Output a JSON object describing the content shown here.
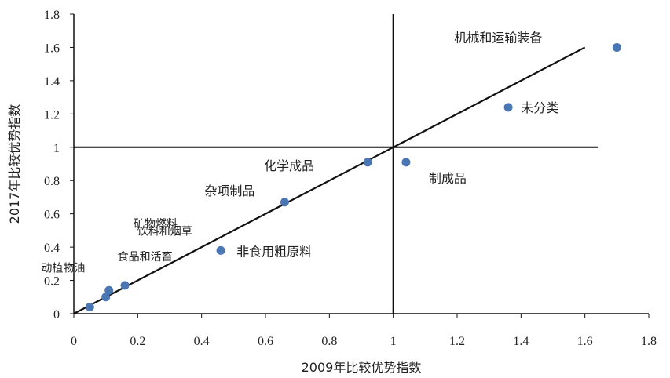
{
  "chart_data": {
    "type": "scatter",
    "title": "",
    "xlabel": "2009年比较优势指数",
    "ylabel": "2017年比较优势指数",
    "xlim": [
      0,
      1.8
    ],
    "ylim": [
      0,
      1.8
    ],
    "xticks": [
      "0",
      "0.2",
      "0.4",
      "0.6",
      "0.8",
      "1",
      "1.2",
      "1.4",
      "1.6",
      "1.8"
    ],
    "yticks": [
      "0",
      "0.2",
      "0.4",
      "0.6",
      "0.8",
      "1",
      "1.2",
      "1.4",
      "1.6",
      "1.8"
    ],
    "marker_color": "#4a77b4",
    "line_color": "#111111",
    "reference_lines": {
      "x": 1.0,
      "y": 1.0
    },
    "trend_line": {
      "from": [
        0,
        0
      ],
      "to": [
        1.6,
        1.6
      ]
    },
    "points": [
      {
        "label": "动植物油",
        "x": 0.05,
        "y": 0.04
      },
      {
        "label": "食品和活畜",
        "x": 0.1,
        "y": 0.1
      },
      {
        "label": "饮料和烟草",
        "x": 0.11,
        "y": 0.14
      },
      {
        "label": "矿物燃料",
        "x": 0.16,
        "y": 0.17
      },
      {
        "label": "非食用粗原料",
        "x": 0.46,
        "y": 0.38
      },
      {
        "label": "杂项制品",
        "x": 0.66,
        "y": 0.67
      },
      {
        "label": "化学成品",
        "x": 0.92,
        "y": 0.91
      },
      {
        "label": "制成品",
        "x": 1.04,
        "y": 0.91
      },
      {
        "label": "未分类",
        "x": 1.36,
        "y": 1.24
      },
      {
        "label": "机械和运输装备",
        "x": 1.7,
        "y": 1.6
      }
    ]
  }
}
